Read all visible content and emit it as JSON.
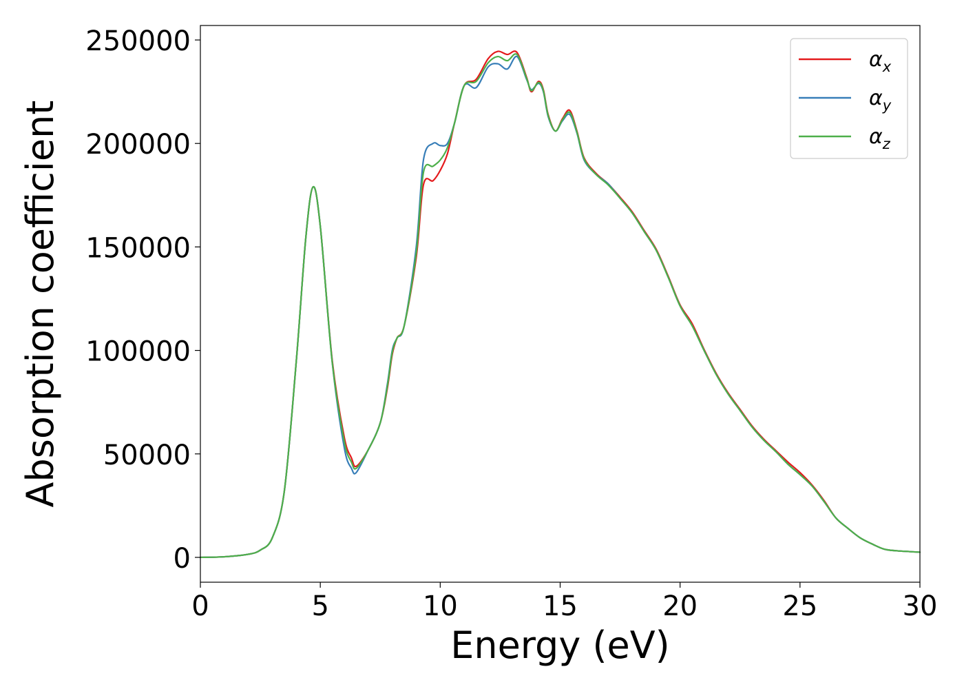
{
  "chart_data": {
    "type": "line",
    "xlabel": "Energy (eV)",
    "ylabel": "Absorption coefficient",
    "xlim": [
      0,
      30
    ],
    "ylim": [
      -12000,
      257000
    ],
    "xticks": [
      0,
      5,
      10,
      15,
      20,
      25,
      30
    ],
    "xtick_labels": [
      "0",
      "5",
      "10",
      "15",
      "20",
      "25",
      "30"
    ],
    "yticks": [
      0,
      50000,
      100000,
      150000,
      200000,
      250000
    ],
    "ytick_labels": [
      "0",
      "50000",
      "100000",
      "150000",
      "200000",
      "250000"
    ],
    "grid": false,
    "legend_position": "top-right",
    "series": [
      {
        "name": "α",
        "subscript": "x",
        "color": "#e41a1c",
        "points": [
          [
            0,
            0
          ],
          [
            1,
            300
          ],
          [
            2,
            1500
          ],
          [
            2.5,
            3500
          ],
          [
            3,
            9500
          ],
          [
            3.5,
            32000
          ],
          [
            4,
            95000
          ],
          [
            4.4,
            155000
          ],
          [
            4.7,
            179000
          ],
          [
            5,
            160000
          ],
          [
            5.5,
            95000
          ],
          [
            6,
            58000
          ],
          [
            6.3,
            48000
          ],
          [
            6.5,
            44000
          ],
          [
            7,
            52000
          ],
          [
            7.5,
            65000
          ],
          [
            7.8,
            82000
          ],
          [
            8,
            98000
          ],
          [
            8.2,
            106000
          ],
          [
            8.5,
            112000
          ],
          [
            9,
            145000
          ],
          [
            9.3,
            180000
          ],
          [
            9.7,
            182000
          ],
          [
            10,
            187000
          ],
          [
            10.3,
            195000
          ],
          [
            10.6,
            210000
          ],
          [
            11,
            228000
          ],
          [
            11.5,
            231000
          ],
          [
            12,
            241000
          ],
          [
            12.4,
            244500
          ],
          [
            12.8,
            243000
          ],
          [
            13.2,
            244000
          ],
          [
            13.6,
            232000
          ],
          [
            13.8,
            225000
          ],
          [
            14.1,
            230000
          ],
          [
            14.3,
            226000
          ],
          [
            14.5,
            214000
          ],
          [
            14.8,
            206000
          ],
          [
            15.1,
            212000
          ],
          [
            15.4,
            216000
          ],
          [
            15.7,
            206000
          ],
          [
            16,
            193000
          ],
          [
            16.5,
            185500
          ],
          [
            17,
            180500
          ],
          [
            17.5,
            174000
          ],
          [
            18,
            167000
          ],
          [
            18.5,
            158000
          ],
          [
            19,
            149000
          ],
          [
            19.5,
            136000
          ],
          [
            20,
            122000
          ],
          [
            20.5,
            113000
          ],
          [
            21,
            100500
          ],
          [
            21.5,
            89000
          ],
          [
            22,
            79500
          ],
          [
            22.5,
            71500
          ],
          [
            23,
            63500
          ],
          [
            23.5,
            57000
          ],
          [
            24,
            51500
          ],
          [
            24.5,
            46000
          ],
          [
            25,
            41000
          ],
          [
            25.5,
            35000
          ],
          [
            26,
            27500
          ],
          [
            26.5,
            19000
          ],
          [
            27,
            14000
          ],
          [
            27.5,
            9500
          ],
          [
            28,
            6500
          ],
          [
            28.5,
            4000
          ],
          [
            29,
            3200
          ],
          [
            30,
            2500
          ]
        ]
      },
      {
        "name": "α",
        "subscript": "y",
        "color": "#377eb8",
        "points": [
          [
            0,
            0
          ],
          [
            1,
            300
          ],
          [
            2,
            1500
          ],
          [
            2.5,
            3500
          ],
          [
            3,
            9500
          ],
          [
            3.5,
            32000
          ],
          [
            4,
            95000
          ],
          [
            4.4,
            155000
          ],
          [
            4.7,
            179000
          ],
          [
            5,
            160000
          ],
          [
            5.5,
            94000
          ],
          [
            6,
            53000
          ],
          [
            6.3,
            43000
          ],
          [
            6.5,
            41000
          ],
          [
            7,
            52000
          ],
          [
            7.5,
            65000
          ],
          [
            7.8,
            84000
          ],
          [
            8,
            100000
          ],
          [
            8.2,
            106000
          ],
          [
            8.5,
            112000
          ],
          [
            9,
            150000
          ],
          [
            9.3,
            192000
          ],
          [
            9.7,
            200000
          ],
          [
            10,
            199000
          ],
          [
            10.3,
            200000
          ],
          [
            10.6,
            210000
          ],
          [
            11,
            228000
          ],
          [
            11.5,
            227000
          ],
          [
            12,
            237000
          ],
          [
            12.4,
            238500
          ],
          [
            12.8,
            236000
          ],
          [
            13.2,
            242000
          ],
          [
            13.6,
            231000
          ],
          [
            13.8,
            226000
          ],
          [
            14.1,
            229000
          ],
          [
            14.3,
            225000
          ],
          [
            14.5,
            213000
          ],
          [
            14.8,
            206000
          ],
          [
            15.1,
            211000
          ],
          [
            15.4,
            214000
          ],
          [
            15.7,
            205000
          ],
          [
            16,
            192000
          ],
          [
            16.5,
            185000
          ],
          [
            17,
            180500
          ],
          [
            17.5,
            173500
          ],
          [
            18,
            166500
          ],
          [
            18.5,
            157500
          ],
          [
            19,
            148500
          ],
          [
            19.5,
            135500
          ],
          [
            20,
            121500
          ],
          [
            20.5,
            112000
          ],
          [
            21,
            100000
          ],
          [
            21.5,
            88500
          ],
          [
            22,
            79000
          ],
          [
            22.5,
            71000
          ],
          [
            23,
            63000
          ],
          [
            23.5,
            56500
          ],
          [
            24,
            51000
          ],
          [
            24.5,
            45000
          ],
          [
            25,
            40000
          ],
          [
            25.5,
            34500
          ],
          [
            26,
            27000
          ],
          [
            26.5,
            19000
          ],
          [
            27,
            14000
          ],
          [
            27.5,
            9500
          ],
          [
            28,
            6500
          ],
          [
            28.5,
            4000
          ],
          [
            29,
            3200
          ],
          [
            30,
            2500
          ]
        ]
      },
      {
        "name": "α",
        "subscript": "z",
        "color": "#4daf4a",
        "points": [
          [
            0,
            0
          ],
          [
            1,
            300
          ],
          [
            2,
            1500
          ],
          [
            2.5,
            3500
          ],
          [
            3,
            9500
          ],
          [
            3.5,
            32000
          ],
          [
            4,
            95000
          ],
          [
            4.4,
            155000
          ],
          [
            4.7,
            179000
          ],
          [
            5,
            160000
          ],
          [
            5.5,
            94000
          ],
          [
            6,
            56000
          ],
          [
            6.3,
            46000
          ],
          [
            6.5,
            43000
          ],
          [
            7,
            52000
          ],
          [
            7.5,
            65000
          ],
          [
            7.8,
            83000
          ],
          [
            8,
            99000
          ],
          [
            8.2,
            106000
          ],
          [
            8.5,
            112000
          ],
          [
            9,
            147000
          ],
          [
            9.3,
            186000
          ],
          [
            9.7,
            189000
          ],
          [
            10,
            192000
          ],
          [
            10.3,
            198000
          ],
          [
            10.6,
            210000
          ],
          [
            11,
            228000
          ],
          [
            11.5,
            230000
          ],
          [
            12,
            239000
          ],
          [
            12.4,
            242000
          ],
          [
            12.8,
            240000
          ],
          [
            13.2,
            243000
          ],
          [
            13.6,
            231500
          ],
          [
            13.8,
            225500
          ],
          [
            14.1,
            229500
          ],
          [
            14.3,
            225500
          ],
          [
            14.5,
            213500
          ],
          [
            14.8,
            206000
          ],
          [
            15.1,
            211500
          ],
          [
            15.4,
            215000
          ],
          [
            15.7,
            205500
          ],
          [
            16,
            192500
          ],
          [
            16.5,
            185000
          ],
          [
            17,
            180000
          ],
          [
            17.5,
            173500
          ],
          [
            18,
            166500
          ],
          [
            18.5,
            157500
          ],
          [
            19,
            148500
          ],
          [
            19.5,
            135500
          ],
          [
            20,
            121500
          ],
          [
            20.5,
            112000
          ],
          [
            21,
            100000
          ],
          [
            21.5,
            88500
          ],
          [
            22,
            79000
          ],
          [
            22.5,
            71000
          ],
          [
            23,
            63000
          ],
          [
            23.5,
            56500
          ],
          [
            24,
            51000
          ],
          [
            24.5,
            45000
          ],
          [
            25,
            40000
          ],
          [
            25.5,
            34500
          ],
          [
            26,
            27000
          ],
          [
            26.5,
            19000
          ],
          [
            27,
            14000
          ],
          [
            27.5,
            9500
          ],
          [
            28,
            6500
          ],
          [
            28.5,
            4000
          ],
          [
            29,
            3200
          ],
          [
            30,
            2500
          ]
        ]
      }
    ]
  }
}
